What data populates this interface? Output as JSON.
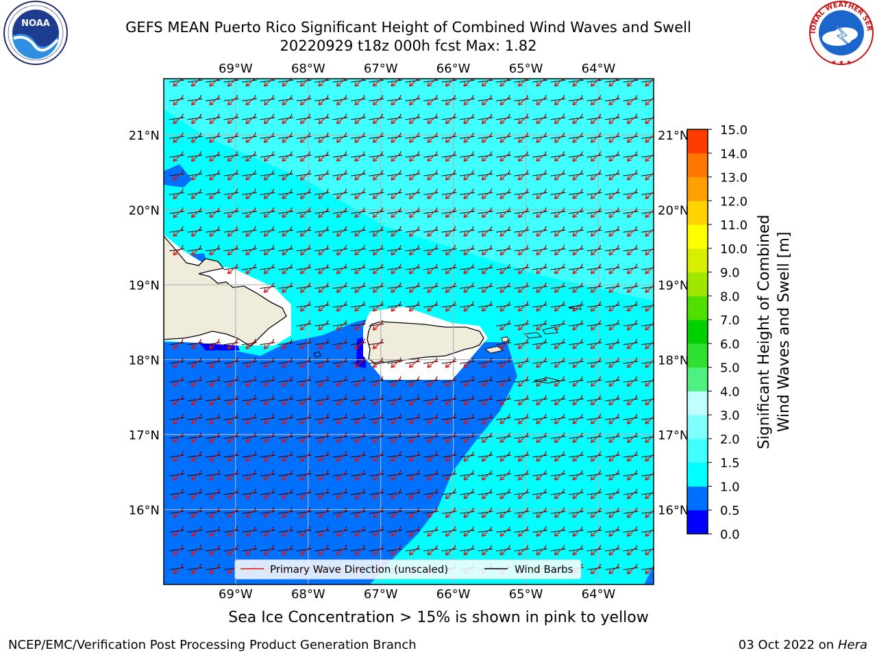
{
  "header": {
    "title_line1": "GEFS MEAN Puerto Rico Significant Height of Combined Wind Waves and Swell",
    "title_line2": "20220929 t18z 000h fcst   Max: 1.82"
  },
  "logos": {
    "left": {
      "icon": "noaa-logo-icon",
      "text": "NOAA",
      "ring_text": "NATIONAL OCEANIC AND ATMOSPHERIC ADMINISTRATION · U.S. DEPARTMENT OF COMMERCE"
    },
    "right": {
      "icon": "nws-logo-icon",
      "ring_text": "NATIONAL WEATHER SERVICE"
    }
  },
  "map": {
    "lon_ticks": [
      "69°W",
      "68°W",
      "67°W",
      "66°W",
      "65°W",
      "64°W"
    ],
    "lon_values": [
      -69,
      -68,
      -67,
      -66,
      -65,
      -64
    ],
    "lat_ticks": [
      "21°N",
      "20°N",
      "19°N",
      "18°N",
      "17°N",
      "16°N"
    ],
    "lat_values": [
      21,
      20,
      19,
      18,
      17,
      16
    ],
    "lon_range": [
      -69.99,
      -63.24
    ],
    "lat_range": [
      15.0,
      21.75
    ],
    "legend": {
      "wave_label": "Primary Wave Direction (unscaled)",
      "barb_label": "Wind Barbs"
    }
  },
  "colorbar": {
    "label": "Significant Height of Combined\nWind Waves and Swell [m]",
    "ticks": [
      "0.0",
      "0.5",
      "1.0",
      "1.5",
      "2.0",
      "3.0",
      "4.0",
      "5.0",
      "6.0",
      "7.0",
      "8.0",
      "9.0",
      "10.0",
      "11.0",
      "12.0",
      "13.0",
      "14.0",
      "15.0"
    ],
    "colors": [
      "#0000ff",
      "#0070ff",
      "#00ffff",
      "#40ffff",
      "#80ffff",
      "#bfffff",
      "#50f080",
      "#30e030",
      "#00d000",
      "#50e000",
      "#a0e600",
      "#d8ee00",
      "#ffff00",
      "#ffd200",
      "#ffa000",
      "#ff7800",
      "#ff3c00",
      "#ff0000"
    ]
  },
  "chart_data": {
    "type": "heatmap",
    "title": "GEFS MEAN Puerto Rico Significant Height of Combined Wind Waves and Swell",
    "subtitle": "20220929 t18z 000h fcst   Max: 1.82",
    "variable_units": "m",
    "max_value": 1.82,
    "contour_levels": [
      0.0,
      0.5,
      1.0,
      1.5,
      2.0,
      3.0,
      4.0,
      5.0,
      6.0,
      7.0,
      8.0,
      9.0,
      10.0,
      11.0,
      12.0,
      13.0,
      14.0,
      15.0
    ],
    "xlim": [
      -69.99,
      -63.24
    ],
    "ylim": [
      15.0,
      21.75
    ],
    "dominant_wave_direction": "from northeast",
    "dominant_wind": "light easterly"
  },
  "footer": {
    "sea_ice_note": "Sea Ice Concentration > 15% is shown in pink to yellow",
    "credit": "NCEP/EMC/Verification Post Processing Product Generation Branch",
    "date": "03 Oct 2022 on ",
    "machine": "Hera"
  }
}
